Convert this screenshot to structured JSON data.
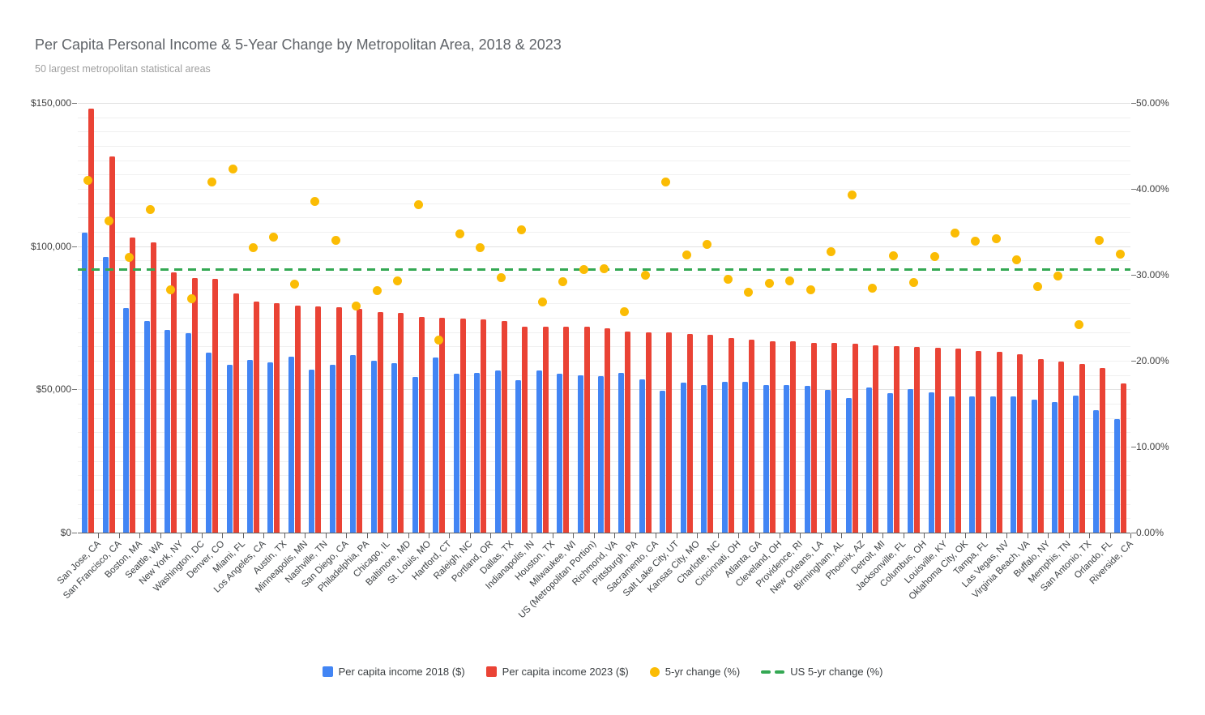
{
  "title": "Per Capita Personal Income & 5-Year Change by Metropolitan Area, 2018 & 2023",
  "subtitle": "50 largest metropolitan statistical areas",
  "legend": [
    {
      "label": "Per capita income 2018 ($)",
      "marker": "square",
      "color": "#4285F4"
    },
    {
      "label": "Per capita income 2023 ($)",
      "marker": "square",
      "color": "#EA4335"
    },
    {
      "label": "5-yr change (%)",
      "marker": "circle",
      "color": "#FBBC04"
    },
    {
      "label": "US 5-yr change (%)",
      "marker": "dashes",
      "color": "#34A853"
    }
  ],
  "axes": {
    "left": {
      "tick_labels": [
        "$0",
        "$50,000",
        "$100,000",
        "$150,000"
      ],
      "tick_values": [
        0,
        50000,
        100000,
        150000
      ]
    },
    "right": {
      "tick_labels": [
        "0.00%",
        "10.00%",
        "20.00%",
        "30.00%",
        "40.00%",
        "50.00%"
      ],
      "tick_values": [
        0,
        10,
        20,
        30,
        40,
        50
      ]
    }
  },
  "chart_data": {
    "type": "combo",
    "title": "Per Capita Personal Income & 5-Year Change by Metropolitan Area, 2018 & 2023",
    "subtitle": "50 largest metropolitan statistical areas",
    "legend_position": "bottom",
    "grid": {
      "minor_step_dollars": 5000,
      "major_step_dollars": 50000
    },
    "left_axis": {
      "label_format": "$",
      "min": 0,
      "max": 150000
    },
    "right_axis": {
      "label_format": "%",
      "min": 0,
      "max": 50
    },
    "categories": [
      "San Jose, CA",
      "San Francisco, CA",
      "Boston, MA",
      "Seattle, WA",
      "New York, NY",
      "Washington, DC",
      "Denver, CO",
      "Miami, FL",
      "Los Angeles, CA",
      "Austin, TX",
      "Minneapolis, MN",
      "Nashville, TN",
      "San Diego, CA",
      "Philadelphia, PA",
      "Chicago, IL",
      "Baltimore, MD",
      "St. Louis, MO",
      "Hartford, CT",
      "Raleigh, NC",
      "Portland, OR",
      "Dallas, TX",
      "Indianapolis, IN",
      "Houston, TX",
      "Milwaukee, WI",
      "US (Metropolitan Portion)",
      "Richmond, VA",
      "Pittsburgh, PA",
      "Sacramento, CA",
      "Salt Lake City, UT",
      "Kansas City, MO",
      "Charlotte, NC",
      "Cincinnati, OH",
      "Atlanta, GA",
      "Cleveland, OH",
      "Providence, RI",
      "New Orleans, LA",
      "Birmingham, AL",
      "Phoenix, AZ",
      "Detroit, MI",
      "Jacksonville, FL",
      "Columbus, OH",
      "Louisville, KY",
      "Oklahoma City, OK",
      "Tampa, FL",
      "Las Vegas, NV",
      "Virginia Beach, VA",
      "Buffalo, NY",
      "Memphis, TN",
      "San Antonio, TX",
      "Orlando, FL",
      "Riverside, CA"
    ],
    "series": [
      {
        "name": "Per capita income 2018 ($)",
        "type": "bar",
        "axis": "left",
        "color": "#4285F4",
        "values": [
          104800,
          96300,
          78300,
          74000,
          70700,
          69700,
          62900,
          58600,
          60200,
          59300,
          61300,
          56800,
          58500,
          61900,
          60000,
          59100,
          54300,
          61100,
          55400,
          55900,
          56700,
          53200,
          56500,
          55600,
          54800,
          54500,
          55800,
          53500,
          49400,
          52400,
          51400,
          52700,
          52600,
          51500,
          51500,
          51200,
          49900,
          47000,
          50800,
          48700,
          50100,
          48900,
          47500,
          47500,
          47500,
          47500,
          46300,
          45700,
          47700,
          42600,
          39500
        ]
      },
      {
        "name": "Per capita income 2023 ($)",
        "type": "bar",
        "axis": "left",
        "color": "#EA4335",
        "values": [
          147900,
          131200,
          103000,
          101400,
          90900,
          89000,
          88600,
          83600,
          80600,
          80000,
          79200,
          79000,
          78600,
          78100,
          77000,
          76700,
          75200,
          74900,
          74600,
          74400,
          73900,
          72000,
          72000,
          71800,
          71800,
          71200,
          70100,
          70000,
          70000,
          69400,
          69200,
          68000,
          67500,
          66800,
          66800,
          66100,
          66100,
          65900,
          65400,
          65000,
          64700,
          64600,
          64200,
          63400,
          63200,
          62200,
          60700,
          59600,
          59000,
          57500,
          52200
        ]
      },
      {
        "name": "5-yr change (%)",
        "type": "scatter",
        "axis": "right",
        "color": "#FBBC04",
        "values": [
          41.0,
          36.3,
          32.0,
          37.6,
          28.3,
          27.2,
          40.8,
          42.3,
          33.2,
          34.4,
          28.9,
          38.5,
          34.0,
          26.4,
          28.2,
          29.3,
          38.2,
          22.4,
          34.8,
          33.2,
          29.7,
          35.2,
          26.8,
          29.2,
          30.6,
          30.7,
          25.7,
          30.0,
          40.8,
          32.3,
          33.5,
          29.5,
          28.0,
          29.0,
          29.3,
          28.3,
          32.7,
          39.3,
          28.4,
          32.2,
          29.1,
          32.1,
          34.9,
          33.9,
          34.2,
          31.7,
          28.6,
          29.9,
          24.2,
          34.0,
          32.4
        ]
      },
      {
        "name": "US 5-yr change (%)",
        "type": "dashed-line",
        "axis": "right",
        "color": "#34A853",
        "value": 30.6
      }
    ]
  }
}
